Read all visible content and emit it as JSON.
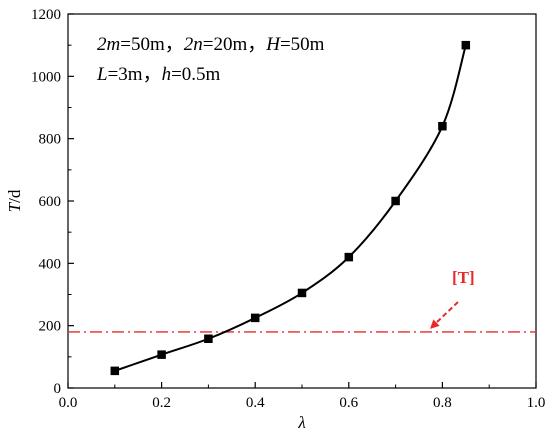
{
  "chart_data": {
    "type": "line",
    "title": "",
    "xlabel": "λ",
    "ylabel_var": "T",
    "ylabel_unit": "/d",
    "xlim": [
      0.0,
      1.0
    ],
    "ylim": [
      0,
      1200
    ],
    "xticks": [
      "0.0",
      "0.2",
      "0.4",
      "0.6",
      "0.8",
      "1.0"
    ],
    "yticks": [
      "0",
      "200",
      "400",
      "600",
      "800",
      "1000",
      "1200"
    ],
    "grid": false,
    "series": [
      {
        "marker": "square",
        "color": "#000000",
        "x": [
          0.1,
          0.2,
          0.3,
          0.4,
          0.5,
          0.6,
          0.7,
          0.8,
          0.85
        ],
        "y": [
          55,
          107,
          158,
          225,
          305,
          420,
          600,
          840,
          1100
        ]
      }
    ],
    "reference_line": {
      "label": "[T]",
      "y": 180,
      "color": "#e8292c",
      "style": "dash-dot"
    },
    "annotation": {
      "line1": [
        {
          "text": "2m",
          "italic": true
        },
        {
          "text": "=50m，",
          "italic": false
        },
        {
          "text": "2n",
          "italic": true
        },
        {
          "text": "=20m，",
          "italic": false
        },
        {
          "text": "H",
          "italic": true
        },
        {
          "text": "=50m",
          "italic": false
        }
      ],
      "line2": [
        {
          "text": "L",
          "italic": true
        },
        {
          "text": "=3m，",
          "italic": false
        },
        {
          "text": "h",
          "italic": true
        },
        {
          "text": "=0.5m",
          "italic": false
        }
      ]
    }
  }
}
